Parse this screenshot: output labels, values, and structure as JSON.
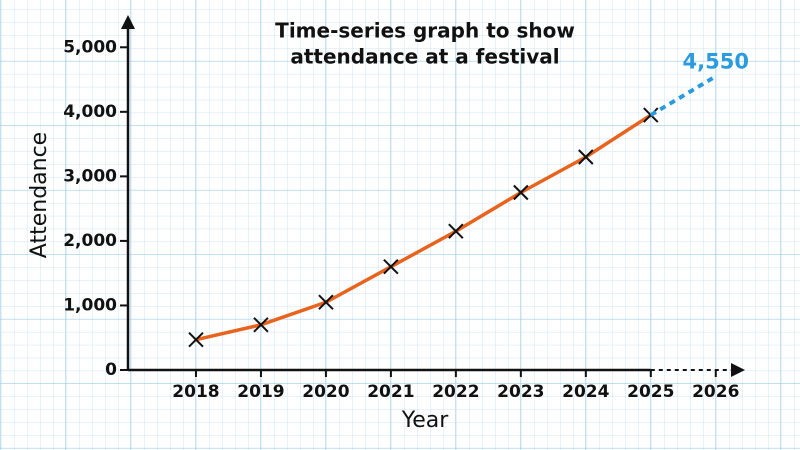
{
  "chart_data": {
    "type": "line",
    "title": [
      "Time-series graph to show",
      "attendance at a festival"
    ],
    "x_label": "Year",
    "y_label": "Attendance",
    "x": [
      2018,
      2019,
      2020,
      2021,
      2022,
      2023,
      2024,
      2025,
      2026
    ],
    "series": [
      {
        "color": "#e8641e",
        "values": [
          470,
          700,
          1050,
          1600,
          2150,
          2750,
          3300,
          3950,
          null
        ]
      },
      {
        "color": "#2b9be0",
        "dashed": true,
        "values": [
          null,
          null,
          null,
          null,
          null,
          null,
          null,
          3950,
          4550
        ],
        "value_labels": [
          null,
          null,
          null,
          null,
          null,
          null,
          null,
          null,
          "4,550"
        ]
      }
    ],
    "xlim": [
      2017,
      2026.45
    ],
    "xticks": [
      2018,
      2019,
      2020,
      2021,
      2022,
      2023,
      2024,
      2025,
      2026
    ],
    "ylim": [
      0,
      5500
    ],
    "yticks": [
      0,
      {
        "value": 1000,
        "label": "1,000"
      },
      {
        "value": 2000,
        "label": "2,000"
      },
      {
        "value": 3000,
        "label": "3,000"
      },
      {
        "value": 4000,
        "label": "4,000"
      },
      {
        "value": 5000,
        "label": "5,000"
      }
    ]
  }
}
